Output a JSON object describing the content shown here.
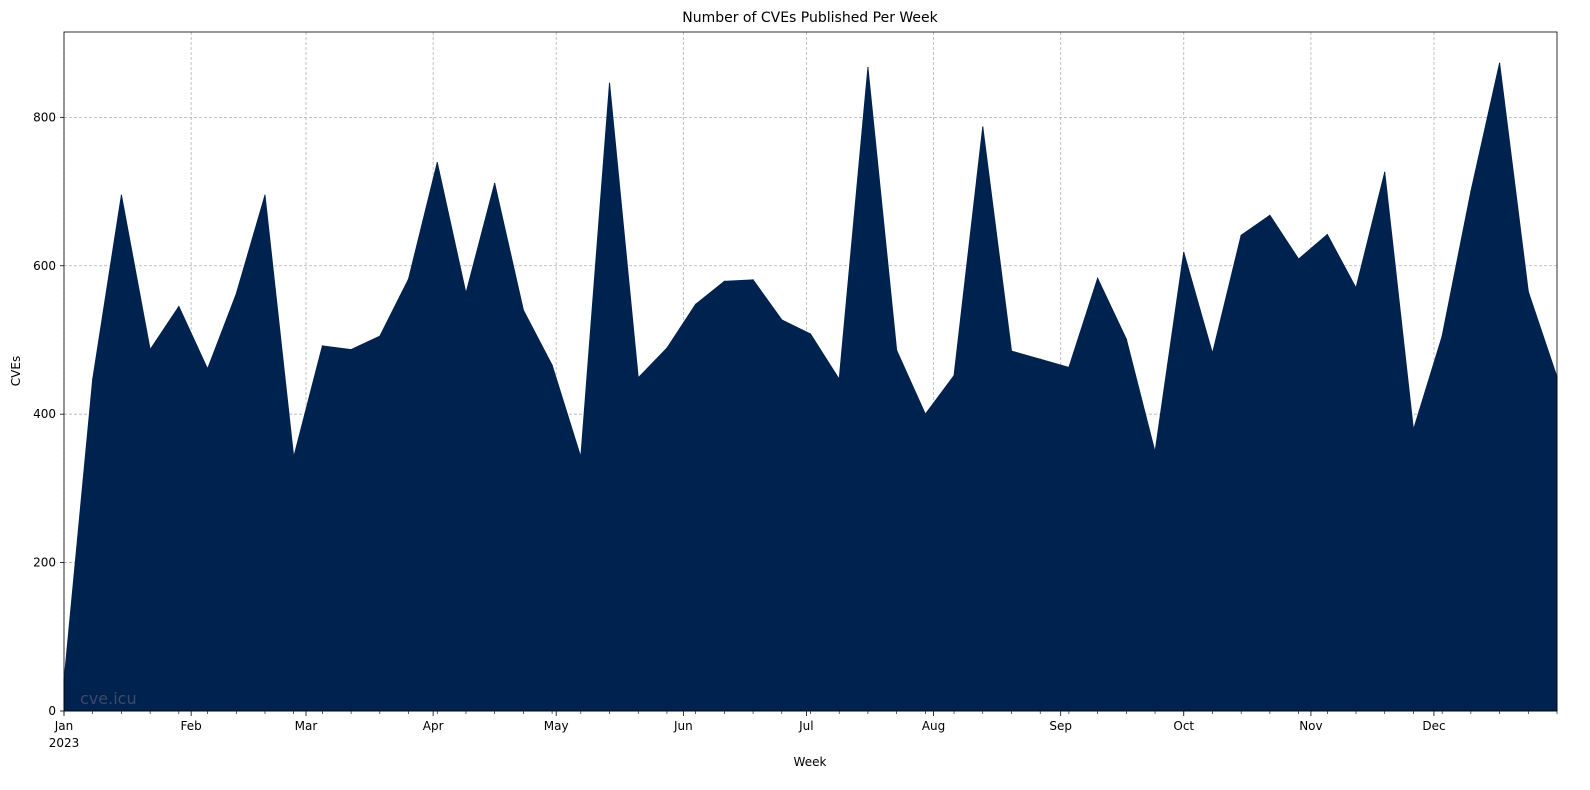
{
  "chart_data": {
    "type": "area",
    "title": "Number of CVEs Published Per Week",
    "xlabel": "Week",
    "ylabel": "CVEs",
    "x_start": "2023-01-01",
    "x_end": "2023-12-31",
    "x": [
      "2023-01-01",
      "2023-01-08",
      "2023-01-15",
      "2023-01-22",
      "2023-01-29",
      "2023-02-05",
      "2023-02-12",
      "2023-02-19",
      "2023-02-26",
      "2023-03-05",
      "2023-03-12",
      "2023-03-19",
      "2023-03-26",
      "2023-04-02",
      "2023-04-09",
      "2023-04-16",
      "2023-04-23",
      "2023-04-30",
      "2023-05-07",
      "2023-05-14",
      "2023-05-21",
      "2023-05-28",
      "2023-06-04",
      "2023-06-11",
      "2023-06-18",
      "2023-06-25",
      "2023-07-02",
      "2023-07-09",
      "2023-07-16",
      "2023-07-23",
      "2023-07-30",
      "2023-08-06",
      "2023-08-13",
      "2023-08-20",
      "2023-08-27",
      "2023-09-03",
      "2023-09-10",
      "2023-09-17",
      "2023-09-24",
      "2023-10-01",
      "2023-10-08",
      "2023-10-15",
      "2023-10-22",
      "2023-10-29",
      "2023-11-05",
      "2023-11-12",
      "2023-11-19",
      "2023-11-26",
      "2023-12-03",
      "2023-12-10",
      "2023-12-17",
      "2023-12-24",
      "2023-12-31"
    ],
    "values": [
      40,
      447,
      695,
      487,
      545,
      461,
      562,
      695,
      342,
      492,
      487,
      505,
      582,
      739,
      563,
      711,
      540,
      466,
      342,
      846,
      449,
      489,
      548,
      579,
      581,
      527,
      508,
      447,
      867,
      486,
      400,
      452,
      787,
      485,
      474,
      463,
      583,
      501,
      349,
      618,
      482,
      641,
      668,
      609,
      642,
      570,
      726,
      379,
      505,
      700,
      873,
      565,
      450
    ],
    "ylim": [
      0,
      915
    ],
    "yticks": [
      0,
      200,
      400,
      600,
      800
    ],
    "xtick_labels": [
      {
        "date": "2023-01-01",
        "label": "Jan",
        "sub": "2023"
      },
      {
        "date": "2023-02-01",
        "label": "Feb"
      },
      {
        "date": "2023-03-01",
        "label": "Mar"
      },
      {
        "date": "2023-04-01",
        "label": "Apr"
      },
      {
        "date": "2023-05-01",
        "label": "May"
      },
      {
        "date": "2023-06-01",
        "label": "Jun"
      },
      {
        "date": "2023-07-01",
        "label": "Jul"
      },
      {
        "date": "2023-08-01",
        "label": "Aug"
      },
      {
        "date": "2023-09-01",
        "label": "Sep"
      },
      {
        "date": "2023-10-01",
        "label": "Oct"
      },
      {
        "date": "2023-11-01",
        "label": "Nov"
      },
      {
        "date": "2023-12-01",
        "label": "Dec"
      }
    ],
    "grid": true,
    "fill_color": "#00224e",
    "watermark": "cve.icu"
  }
}
